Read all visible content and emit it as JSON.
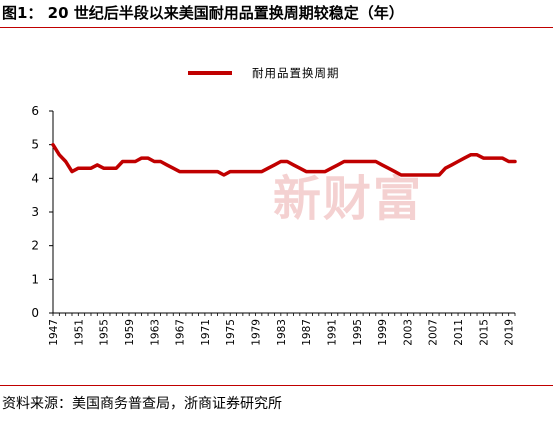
{
  "header": {
    "title": "图1：  20 世纪后半段以来美国耐用品置换周期较稳定（年）"
  },
  "footer": {
    "source": "资料来源：美国商务普查局，浙商证券研究所"
  },
  "watermark": {
    "text": "新财富"
  },
  "colors": {
    "series": "#c00000",
    "rule": "#c00000",
    "axis": "#000000",
    "watermark": "#f2c6c6"
  },
  "chart_data": {
    "type": "line",
    "title": "",
    "xlabel": "",
    "ylabel": "",
    "ylim": [
      0,
      6
    ],
    "yticks": [
      "0",
      "1",
      "2",
      "3",
      "4",
      "5",
      "6"
    ],
    "xticks": [
      "1947",
      "1951",
      "1955",
      "1959",
      "1963",
      "1967",
      "1971",
      "1975",
      "1979",
      "1983",
      "1987",
      "1991",
      "1995",
      "1999",
      "2003",
      "2007",
      "2011",
      "2015",
      "2019"
    ],
    "grid": false,
    "legend_position": "top",
    "series": [
      {
        "name": "耐用品置换周期",
        "x": [
          1947,
          1948,
          1949,
          1950,
          1951,
          1952,
          1953,
          1954,
          1955,
          1956,
          1957,
          1958,
          1959,
          1960,
          1961,
          1962,
          1963,
          1964,
          1965,
          1966,
          1967,
          1968,
          1969,
          1970,
          1971,
          1972,
          1973,
          1974,
          1975,
          1976,
          1977,
          1978,
          1979,
          1980,
          1981,
          1982,
          1983,
          1984,
          1985,
          1986,
          1987,
          1988,
          1989,
          1990,
          1991,
          1992,
          1993,
          1994,
          1995,
          1996,
          1997,
          1998,
          1999,
          2000,
          2001,
          2002,
          2003,
          2004,
          2005,
          2006,
          2007,
          2008,
          2009,
          2010,
          2011,
          2012,
          2013,
          2014,
          2015,
          2016,
          2017,
          2018,
          2019,
          2020
        ],
        "values": [
          5.0,
          4.7,
          4.5,
          4.2,
          4.3,
          4.3,
          4.3,
          4.4,
          4.3,
          4.3,
          4.3,
          4.5,
          4.5,
          4.5,
          4.6,
          4.6,
          4.5,
          4.5,
          4.4,
          4.3,
          4.2,
          4.2,
          4.2,
          4.2,
          4.2,
          4.2,
          4.2,
          4.1,
          4.2,
          4.2,
          4.2,
          4.2,
          4.2,
          4.2,
          4.3,
          4.4,
          4.5,
          4.5,
          4.4,
          4.3,
          4.2,
          4.2,
          4.2,
          4.2,
          4.3,
          4.4,
          4.5,
          4.5,
          4.5,
          4.5,
          4.5,
          4.5,
          4.4,
          4.3,
          4.2,
          4.1,
          4.1,
          4.1,
          4.1,
          4.1,
          4.1,
          4.1,
          4.3,
          4.4,
          4.5,
          4.6,
          4.7,
          4.7,
          4.6,
          4.6,
          4.6,
          4.6,
          4.5,
          4.5
        ]
      }
    ]
  }
}
